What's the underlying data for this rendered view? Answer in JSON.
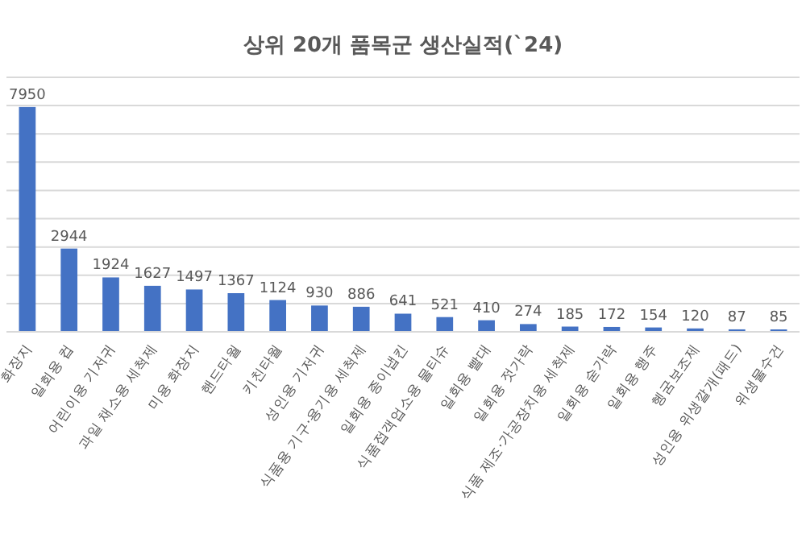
{
  "chart_data": {
    "type": "bar",
    "title": "상위 20개 품목군 생산실적(`24)",
    "categories": [
      "화장지",
      "일회용 컵",
      "어린이용 기저귀",
      "과일 채소용 세척제",
      "미용 화장지",
      "핸드타월",
      "키친타월",
      "성인용 기저귀",
      "식품용 기구·용기용 세척제",
      "일회용 종이냅킨",
      "식품접객업소용 물티슈",
      "일회용 빨대",
      "일회용 젓가락",
      "식품 제조·가공장치용 세척제",
      "일회용 숟가락",
      "일회용 행주",
      "헹굼보조제",
      "성인용 위생깔개(패드)",
      "위생물수건"
    ],
    "values": [
      7950,
      2944,
      1924,
      1627,
      1497,
      1367,
      1124,
      930,
      886,
      641,
      521,
      410,
      274,
      185,
      172,
      154,
      120,
      87,
      85
    ],
    "color": "#4472c4",
    "data_labels": true,
    "grid": "y",
    "ylim": [
      0,
      9000
    ],
    "tick_labels": "x",
    "yticks": [
      {
        "value": 0,
        "label": null
      },
      {
        "value": 1000,
        "label": null
      },
      {
        "value": 2000,
        "label": null
      },
      {
        "value": 3000,
        "label": null
      },
      {
        "value": 4000,
        "label": null
      },
      {
        "value": 5000,
        "label": null
      },
      {
        "value": 6000,
        "label": null
      },
      {
        "value": 7000,
        "label": null
      },
      {
        "value": 8000,
        "label": null
      },
      {
        "value": 9000,
        "label": null
      }
    ]
  }
}
